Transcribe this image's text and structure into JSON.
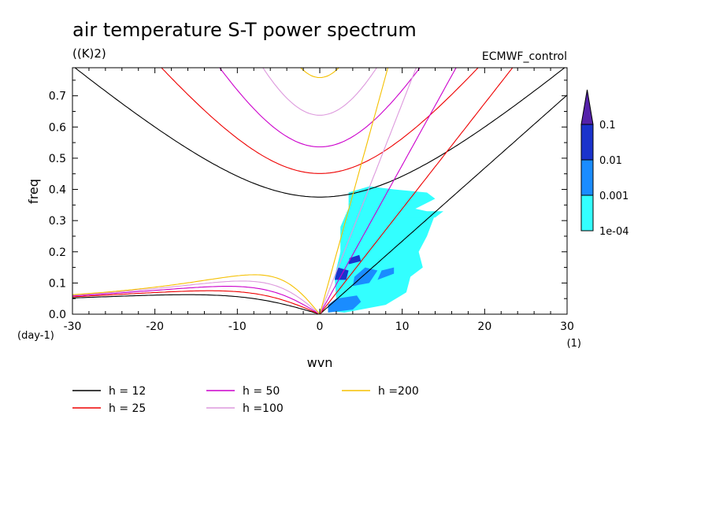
{
  "chart_data": {
    "type": "heatmap",
    "title": "air temperature S-T power spectrum",
    "subtitle": "((K)2)",
    "dataset_label": "ECMWF_control",
    "xlabel": "wvn",
    "ylabel": "freq",
    "x_unit": "(1)",
    "y_unit": "(day-1)",
    "xlim": [
      -30,
      30
    ],
    "ylim": [
      0,
      0.79
    ],
    "xticks": [
      -30,
      -20,
      -10,
      0,
      10,
      20,
      30
    ],
    "xtick_labels": [
      "-30",
      "-20",
      "-10",
      "0",
      "10",
      "20",
      "30"
    ],
    "yticks": [
      0,
      0.1,
      0.2,
      0.3,
      0.4,
      0.5,
      0.6,
      0.7
    ],
    "ytick_labels": [
      "0.0",
      "0.1",
      "0.2",
      "0.3",
      "0.4",
      "0.5",
      "0.6",
      "0.7"
    ],
    "colorbar": {
      "levels": [
        "1e-04",
        "0.001",
        "0.01",
        "0.1"
      ],
      "colors": [
        "#33ffff",
        "#1a8cff",
        "#1a33cc",
        "#5522aa"
      ]
    },
    "dispersion_curves": [
      {
        "label": "h = 12",
        "h": 12,
        "color": "#000000"
      },
      {
        "label": "h = 25",
        "h": 25,
        "color": "#ee0000"
      },
      {
        "label": "h = 50",
        "h": 50,
        "color": "#cc00cc"
      },
      {
        "label": "h =100",
        "h": 100,
        "color": "#dd99dd"
      },
      {
        "label": "h =200",
        "h": 200,
        "color": "#f5c000"
      }
    ],
    "power_regions": [
      {
        "level": "1e-04",
        "polygon": [
          [
            3.5,
            0.39
          ],
          [
            6,
            0.41
          ],
          [
            9,
            0.4
          ],
          [
            13,
            0.39
          ],
          [
            14,
            0.37
          ],
          [
            11,
            0.33
          ],
          [
            14,
            0.32
          ],
          [
            13,
            0.25
          ],
          [
            12,
            0.2
          ],
          [
            12.5,
            0.15
          ],
          [
            11,
            0.12
          ],
          [
            10.5,
            0.07
          ],
          [
            8,
            0.03
          ],
          [
            3,
            0.005
          ],
          [
            1.2,
            0.01
          ],
          [
            2,
            0.05
          ],
          [
            1.8,
            0.12
          ],
          [
            2.5,
            0.2
          ],
          [
            2.5,
            0.28
          ],
          [
            3.5,
            0.34
          ]
        ]
      },
      {
        "level": "1e-04",
        "polygon": [
          [
            9.5,
            0.35
          ],
          [
            13,
            0.33
          ],
          [
            15,
            0.33
          ],
          [
            14,
            0.31
          ],
          [
            10,
            0.31
          ]
        ]
      },
      {
        "level": "0.001",
        "polygon": [
          [
            1,
            0.005
          ],
          [
            4,
            0.015
          ],
          [
            5,
            0.04
          ],
          [
            4.5,
            0.06
          ],
          [
            2,
            0.05
          ],
          [
            1,
            0.03
          ]
        ]
      },
      {
        "level": "0.001",
        "polygon": [
          [
            4,
            0.09
          ],
          [
            6,
            0.1
          ],
          [
            7,
            0.14
          ],
          [
            5.5,
            0.15
          ],
          [
            4.2,
            0.12
          ]
        ]
      },
      {
        "level": "0.001",
        "polygon": [
          [
            7,
            0.11
          ],
          [
            9,
            0.13
          ],
          [
            9,
            0.15
          ],
          [
            7.5,
            0.14
          ]
        ]
      },
      {
        "level": "0.01",
        "polygon": [
          [
            1.8,
            0.11
          ],
          [
            3.2,
            0.11
          ],
          [
            3.5,
            0.14
          ],
          [
            2.2,
            0.15
          ]
        ]
      },
      {
        "level": "0.01",
        "polygon": [
          [
            3.5,
            0.16
          ],
          [
            5,
            0.17
          ],
          [
            4.8,
            0.19
          ],
          [
            3.6,
            0.18
          ]
        ]
      }
    ]
  }
}
